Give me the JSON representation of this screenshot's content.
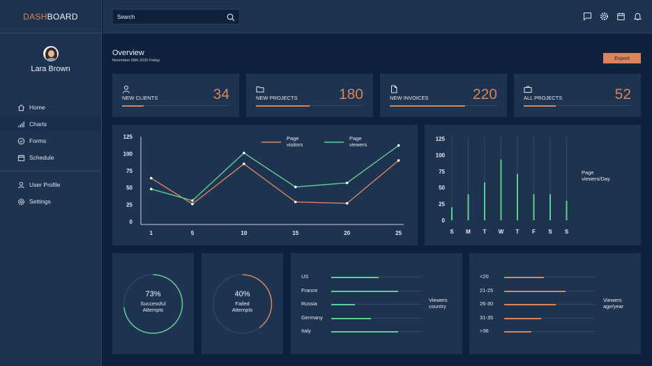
{
  "app": {
    "logo_accent": "DASH",
    "logo_rest": "BOARD"
  },
  "colors": {
    "orange": "#d9845a",
    "green": "#5fcf96",
    "panel": "#1e3350",
    "bg": "#0e223d"
  },
  "profile": {
    "name": "Lara Brown"
  },
  "sidebar": {
    "items": [
      {
        "label": "Home",
        "icon": "home-icon"
      },
      {
        "label": "Charts",
        "icon": "bar-chart-icon",
        "active": true
      },
      {
        "label": "Forms",
        "icon": "check-circle-icon"
      },
      {
        "label": "Schedule",
        "icon": "calendar-icon"
      }
    ],
    "secondary": [
      {
        "label": "User Profile",
        "icon": "user-icon"
      },
      {
        "label": "Settings",
        "icon": "gear-icon"
      }
    ]
  },
  "search": {
    "placeholder": "Search"
  },
  "topbar_icons": [
    "chat-icon",
    "gear-icon",
    "calendar-icon",
    "bell-icon"
  ],
  "overview": {
    "title": "Overview",
    "date": "November 06th 2020 Friday",
    "export_label": "Export"
  },
  "stats": [
    {
      "label": "NEW CLIENTS",
      "value": "34",
      "icon": "user-icon",
      "progress": 0.2
    },
    {
      "label": "NEW PROJECTS",
      "value": "180",
      "icon": "folder-icon",
      "progress": 0.5
    },
    {
      "label": "NEW INVOICES",
      "value": "220",
      "icon": "file-icon",
      "progress": 0.7
    },
    {
      "label": "ALL PROJECTS",
      "value": "52",
      "icon": "tv-icon",
      "progress": 0.3
    }
  ],
  "chart_data": [
    {
      "type": "line",
      "x": [
        1,
        5,
        10,
        15,
        20,
        25
      ],
      "xticks": [
        "1",
        "5",
        "10",
        "15",
        "20",
        "25"
      ],
      "yticks": [
        "0",
        "25",
        "50",
        "75",
        "100",
        "125"
      ],
      "ylim": [
        0,
        125
      ],
      "series": [
        {
          "name": "Page visitors",
          "legend_lines": [
            "Page",
            "visitors"
          ],
          "color": "#d9845a",
          "values": [
            64,
            26,
            85,
            29,
            27,
            90
          ]
        },
        {
          "name": "Page viewers",
          "legend_lines": [
            "Page",
            "viewers"
          ],
          "color": "#5fcf96",
          "values": [
            48,
            31,
            101,
            51,
            57,
            112
          ]
        }
      ],
      "legend": "top"
    },
    {
      "type": "bar",
      "categories": [
        "S",
        "M",
        "T",
        "W",
        "T",
        "F",
        "S",
        "S"
      ],
      "values": [
        20,
        40,
        58,
        93,
        71,
        40,
        40,
        30
      ],
      "ylim": [
        0,
        125
      ],
      "yticks": [
        "0",
        "25",
        "50",
        "75",
        "100",
        "125"
      ],
      "label_lines": [
        "Page",
        "viewers/Day"
      ],
      "color": "#5fcf96"
    }
  ],
  "rings": [
    {
      "percent": "73%",
      "caption_lines": [
        "Successful",
        "Attempts"
      ],
      "value": 0.73,
      "color": "#5fcf96"
    },
    {
      "percent": "40%",
      "caption_lines": [
        "Failed",
        "Attempts"
      ],
      "value": 0.4,
      "color": "#d9845a"
    }
  ],
  "country_bars": {
    "title_lines": [
      "Viewers",
      "country"
    ],
    "color": "#5fcf96",
    "items": [
      {
        "label": "US",
        "value": 0.52
      },
      {
        "label": "France",
        "value": 0.74
      },
      {
        "label": "Russia",
        "value": 0.26
      },
      {
        "label": "Germany",
        "value": 0.44
      },
      {
        "label": "Italy",
        "value": 0.74
      }
    ]
  },
  "age_bars": {
    "title_lines": [
      "Viewers",
      "age/year"
    ],
    "color": "#d9845a",
    "items": [
      {
        "label": "<20",
        "value": 0.44
      },
      {
        "label": "21-25",
        "value": 0.68
      },
      {
        "label": "26-30",
        "value": 0.57
      },
      {
        "label": "31-35",
        "value": 0.41
      },
      {
        "label": ">36",
        "value": 0.3
      }
    ]
  }
}
